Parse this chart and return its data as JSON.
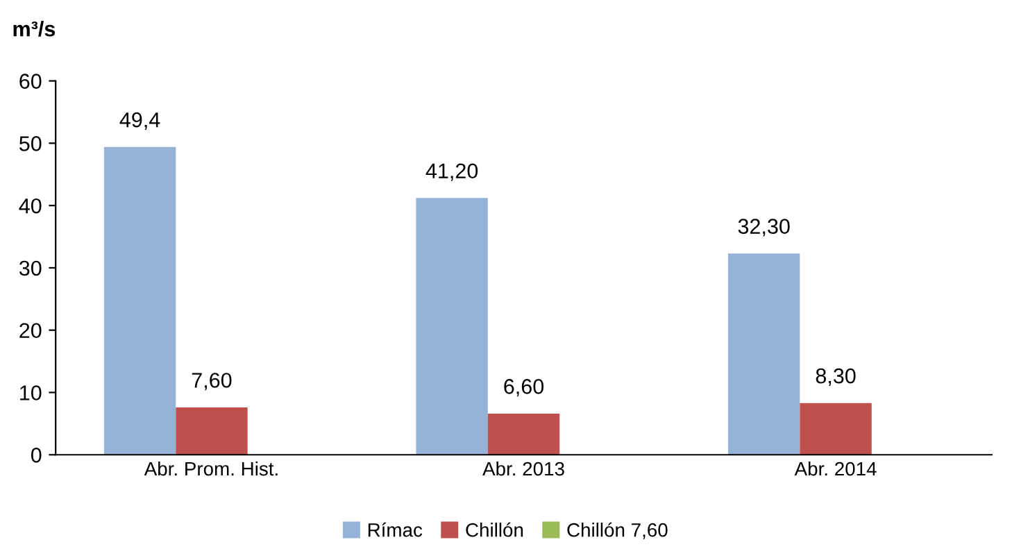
{
  "chart_data": {
    "type": "bar",
    "ylabel": "m³/s",
    "categories": [
      "Abr. Prom. Hist.",
      "Abr. 2013",
      "Abr. 2014"
    ],
    "series": [
      {
        "name": "Rímac",
        "color": "#95b3d7",
        "values": [
          49.4,
          41.2,
          32.3
        ],
        "value_labels": [
          "49,4",
          "41,20",
          "32,30"
        ]
      },
      {
        "name": "Chillón",
        "color": "#c0504d",
        "values": [
          7.6,
          6.6,
          8.3
        ],
        "value_labels": [
          "7,60",
          "6,60",
          "8,30"
        ]
      },
      {
        "name": "Chillón 7,60",
        "color": "#9bbb59",
        "values": [
          null,
          null,
          null
        ]
      }
    ],
    "ylim": [
      0,
      60
    ],
    "yticks": [
      0,
      10,
      20,
      30,
      40,
      50,
      60
    ],
    "grid": false,
    "legend": "bottom"
  }
}
